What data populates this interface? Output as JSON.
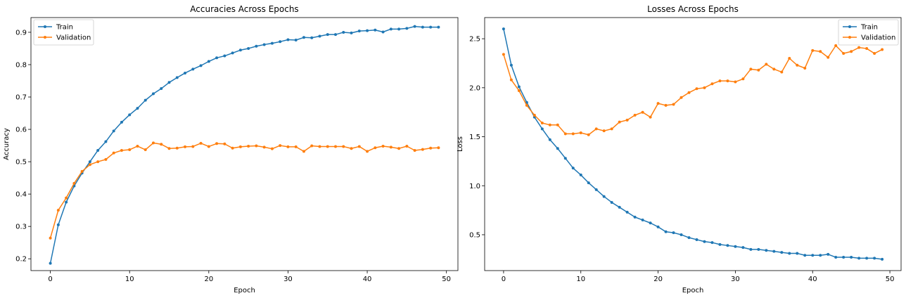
{
  "colors": {
    "train": "#1f77b4",
    "validation": "#ff7f0e"
  },
  "chart_data": [
    {
      "type": "line",
      "title": "Accuracies Across Epochs",
      "xlabel": "Epoch",
      "ylabel": "Accuracy",
      "xlim": [
        -2.45,
        51.45
      ],
      "ylim": [
        0.1635,
        0.9455
      ],
      "xticks": [
        0,
        10,
        20,
        30,
        40,
        50
      ],
      "yticks": [
        0.2,
        0.3,
        0.4,
        0.5,
        0.6,
        0.7,
        0.8,
        0.9
      ],
      "ytick_labels": [
        "0.2",
        "0.3",
        "0.4",
        "0.5",
        "0.6",
        "0.7",
        "0.8",
        "0.9"
      ],
      "legend": "top-left",
      "x": [
        0,
        1,
        2,
        3,
        4,
        5,
        6,
        7,
        8,
        9,
        10,
        11,
        12,
        13,
        14,
        15,
        16,
        17,
        18,
        19,
        20,
        21,
        22,
        23,
        24,
        25,
        26,
        27,
        28,
        29,
        30,
        31,
        32,
        33,
        34,
        35,
        36,
        37,
        38,
        39,
        40,
        41,
        42,
        43,
        44,
        45,
        46,
        47,
        48,
        49
      ],
      "series": [
        {
          "name": "Train",
          "color": "#1f77b4",
          "values": [
            0.186,
            0.305,
            0.375,
            0.425,
            0.465,
            0.5,
            0.535,
            0.562,
            0.595,
            0.622,
            0.645,
            0.665,
            0.69,
            0.71,
            0.726,
            0.745,
            0.76,
            0.774,
            0.786,
            0.797,
            0.81,
            0.821,
            0.827,
            0.836,
            0.845,
            0.85,
            0.857,
            0.862,
            0.866,
            0.871,
            0.877,
            0.876,
            0.884,
            0.883,
            0.888,
            0.893,
            0.893,
            0.9,
            0.898,
            0.904,
            0.905,
            0.907,
            0.901,
            0.91,
            0.91,
            0.912,
            0.918,
            0.916,
            0.916,
            0.916
          ]
        },
        {
          "name": "Validation",
          "color": "#ff7f0e",
          "values": [
            0.264,
            0.35,
            0.388,
            0.433,
            0.47,
            0.491,
            0.5,
            0.507,
            0.527,
            0.535,
            0.537,
            0.548,
            0.537,
            0.558,
            0.554,
            0.541,
            0.542,
            0.546,
            0.547,
            0.557,
            0.547,
            0.556,
            0.555,
            0.542,
            0.546,
            0.548,
            0.549,
            0.545,
            0.54,
            0.55,
            0.546,
            0.546,
            0.532,
            0.549,
            0.547,
            0.547,
            0.547,
            0.547,
            0.541,
            0.547,
            0.532,
            0.543,
            0.548,
            0.545,
            0.541,
            0.548,
            0.535,
            0.538,
            0.542,
            0.543
          ]
        }
      ]
    },
    {
      "type": "line",
      "title": "Losses Across Epochs",
      "xlabel": "Epoch",
      "ylabel": "Loss",
      "xlim": [
        -2.45,
        51.45
      ],
      "ylim": [
        0.134,
        2.716
      ],
      "xticks": [
        0,
        10,
        20,
        30,
        40,
        50
      ],
      "yticks": [
        0.5,
        1.0,
        1.5,
        2.0,
        2.5
      ],
      "ytick_labels": [
        "0.5",
        "1.0",
        "1.5",
        "2.0",
        "2.5"
      ],
      "legend": "top-right",
      "x": [
        0,
        1,
        2,
        3,
        4,
        5,
        6,
        7,
        8,
        9,
        10,
        11,
        12,
        13,
        14,
        15,
        16,
        17,
        18,
        19,
        20,
        21,
        22,
        23,
        24,
        25,
        26,
        27,
        28,
        29,
        30,
        31,
        32,
        33,
        34,
        35,
        36,
        37,
        38,
        39,
        40,
        41,
        42,
        43,
        44,
        45,
        46,
        47,
        48,
        49
      ],
      "series": [
        {
          "name": "Train",
          "color": "#1f77b4",
          "values": [
            2.6,
            2.23,
            2.01,
            1.85,
            1.7,
            1.58,
            1.47,
            1.38,
            1.28,
            1.18,
            1.11,
            1.03,
            0.96,
            0.89,
            0.83,
            0.78,
            0.73,
            0.68,
            0.65,
            0.62,
            0.58,
            0.53,
            0.52,
            0.5,
            0.47,
            0.45,
            0.43,
            0.42,
            0.4,
            0.39,
            0.38,
            0.37,
            0.35,
            0.35,
            0.34,
            0.33,
            0.32,
            0.31,
            0.31,
            0.29,
            0.29,
            0.29,
            0.3,
            0.27,
            0.27,
            0.27,
            0.26,
            0.26,
            0.26,
            0.25
          ]
        },
        {
          "name": "Validation",
          "color": "#ff7f0e",
          "values": [
            2.34,
            2.08,
            1.97,
            1.82,
            1.72,
            1.64,
            1.62,
            1.62,
            1.53,
            1.53,
            1.54,
            1.52,
            1.58,
            1.56,
            1.58,
            1.65,
            1.67,
            1.72,
            1.75,
            1.7,
            1.84,
            1.82,
            1.83,
            1.9,
            1.95,
            1.99,
            2.0,
            2.04,
            2.07,
            2.07,
            2.06,
            2.09,
            2.19,
            2.18,
            2.24,
            2.19,
            2.16,
            2.3,
            2.23,
            2.2,
            2.38,
            2.37,
            2.31,
            2.43,
            2.35,
            2.37,
            2.41,
            2.4,
            2.35,
            2.39
          ]
        }
      ]
    }
  ]
}
